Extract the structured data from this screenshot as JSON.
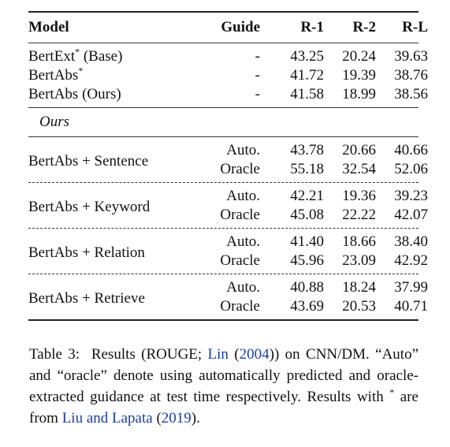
{
  "headers": {
    "model": "Model",
    "guide": "Guide",
    "r1": "R-1",
    "r2": "R-2",
    "rl": "R-L"
  },
  "baselines": [
    {
      "model": "BertExt",
      "mark": "*",
      "suffix": " (Base)",
      "guide": "-",
      "r1": "43.25",
      "r2": "20.24",
      "rl": "39.63"
    },
    {
      "model": "BertAbs",
      "mark": "*",
      "suffix": "",
      "guide": "-",
      "r1": "41.72",
      "r2": "19.39",
      "rl": "38.76"
    },
    {
      "model": "BertAbs (Ours)",
      "mark": "",
      "suffix": "",
      "guide": "-",
      "r1": "41.58",
      "r2": "18.99",
      "rl": "38.56"
    }
  ],
  "section_label": "Ours",
  "groups": [
    {
      "model": "BertAbs + Sentence",
      "rows": [
        {
          "guide": "Auto.",
          "r1": "43.78",
          "r2": "20.66",
          "rl": "40.66"
        },
        {
          "guide": "Oracle",
          "r1": "55.18",
          "r2": "32.54",
          "rl": "52.06"
        }
      ]
    },
    {
      "model": "BertAbs + Keyword",
      "rows": [
        {
          "guide": "Auto.",
          "r1": "42.21",
          "r2": "19.36",
          "rl": "39.23"
        },
        {
          "guide": "Oracle",
          "r1": "45.08",
          "r2": "22.22",
          "rl": "42.07"
        }
      ]
    },
    {
      "model": "BertAbs + Relation",
      "rows": [
        {
          "guide": "Auto.",
          "r1": "41.40",
          "r2": "18.66",
          "rl": "38.40"
        },
        {
          "guide": "Oracle",
          "r1": "45.96",
          "r2": "23.09",
          "rl": "42.92"
        }
      ]
    },
    {
      "model": "BertAbs + Retrieve",
      "rows": [
        {
          "guide": "Auto.",
          "r1": "40.88",
          "r2": "18.24",
          "rl": "37.99"
        },
        {
          "guide": "Oracle",
          "r1": "43.69",
          "r2": "20.53",
          "rl": "40.71"
        }
      ]
    }
  ],
  "caption": {
    "label": "Table 3:",
    "text1": "Results (ROUGE; ",
    "cite1": "Lin",
    "cite1_open": " (",
    "cite1_year": "2004",
    "cite1_close": "))",
    "text2": " on CNN/DM. “Auto” and “oracle” denote using automatically predicted and oracle-extracted guidance at test time respectively. Results with ",
    "mark": "*",
    "text3": " are from ",
    "cite2": "Liu and Lapata",
    "cite2_open": " (",
    "cite2_year": "2019",
    "cite2_close": ")."
  }
}
